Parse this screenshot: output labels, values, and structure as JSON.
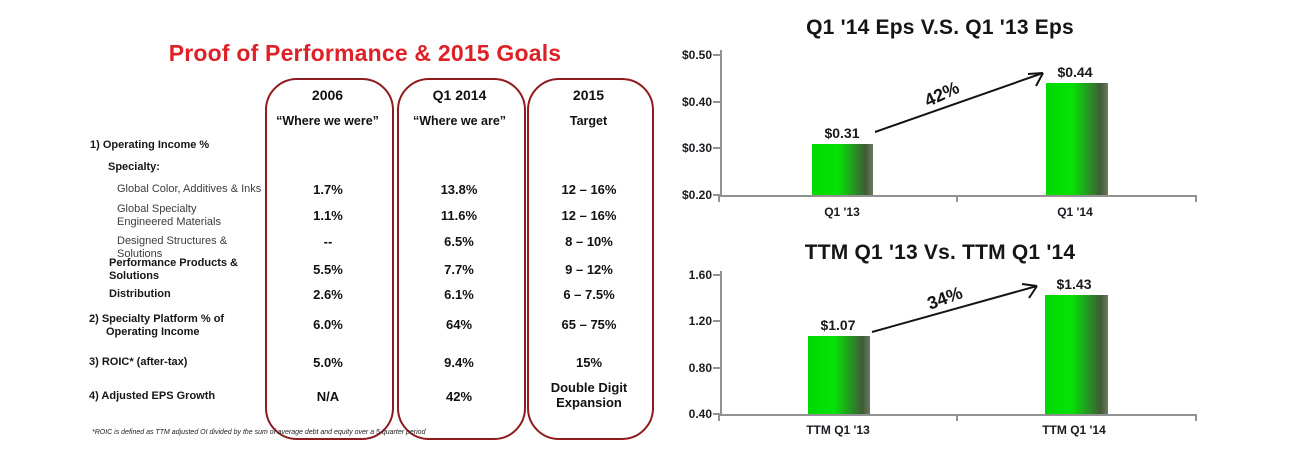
{
  "table": {
    "title": "Proof of Performance & 2015  Goals",
    "footnote": "*ROIC is defined as TTM adjusted OI divided by the sum of average debt and equity over a 5 quarter period",
    "columns": [
      {
        "year": "2006",
        "subtitle": "“Where we were”"
      },
      {
        "year": "Q1 2014",
        "subtitle": "“Where we are”"
      },
      {
        "year": "2015",
        "subtitle": "Target"
      }
    ],
    "rows": [
      {
        "label": "1) Operating Income %",
        "values": [
          "",
          "",
          ""
        ]
      },
      {
        "label": "Specialty:",
        "values": [
          "",
          "",
          ""
        ]
      },
      {
        "label": "Global Color, Additives & Inks",
        "values": [
          "1.7%",
          "13.8%",
          "12 – 16%"
        ]
      },
      {
        "label": "Global Specialty Engineered Materials",
        "values": [
          "1.1%",
          "11.6%",
          "12 – 16%"
        ]
      },
      {
        "label": "Designed Structures & Solutions",
        "values": [
          "--",
          "6.5%",
          "8 – 10%"
        ]
      },
      {
        "label": "Performance Products & Solutions",
        "values": [
          "5.5%",
          "7.7%",
          "9 – 12%"
        ]
      },
      {
        "label": "Distribution",
        "values": [
          "2.6%",
          "6.1%",
          "6 – 7.5%"
        ]
      },
      {
        "label": "2) Specialty Platform % of Operating Income",
        "values": [
          "6.0%",
          "64%",
          "65 – 75%"
        ]
      },
      {
        "label": "3) ROIC* (after-tax)",
        "values": [
          "5.0%",
          "9.4%",
          "15%"
        ]
      },
      {
        "label": "4) Adjusted EPS Growth",
        "values": [
          "N/A",
          "42%",
          "Double Digit Expansion"
        ]
      }
    ]
  },
  "chart_data": [
    {
      "type": "bar",
      "title": "Q1 '14 Eps V.S. Q1 '13  Eps",
      "categories": [
        "Q1 '13",
        "Q1 '14"
      ],
      "values": [
        0.31,
        0.44
      ],
      "value_labels": [
        "$0.31",
        "$0.44"
      ],
      "annotation": "42%",
      "ylim": [
        0.2,
        0.5
      ],
      "yticks": [
        "$0.50",
        "$0.40",
        "$0.30",
        "$0.20"
      ],
      "grid": false,
      "bar_color_left": "#00d800",
      "bar_color_right": "#6d7a62"
    },
    {
      "type": "bar",
      "title": "TTM Q1 '13 Vs. TTM Q1 '14",
      "categories": [
        "TTM  Q1 '13",
        "TTM  Q1 '14"
      ],
      "values": [
        1.07,
        1.43
      ],
      "value_labels": [
        "$1.07",
        "$1.43"
      ],
      "annotation": "34%",
      "ylim": [
        0.4,
        1.6
      ],
      "yticks": [
        "1.60",
        "1.20",
        "0.80",
        "0.40"
      ],
      "grid": false,
      "bar_color_left": "#00d800",
      "bar_color_right": "#6d7a62"
    }
  ]
}
